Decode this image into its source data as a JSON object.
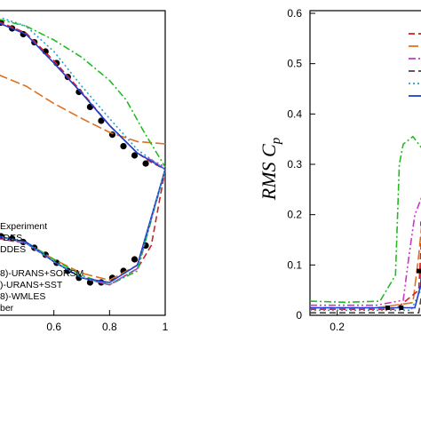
{
  "chart_data": [
    {
      "type": "line",
      "panel": "left",
      "xlim": [
        0.4,
        1.0
      ],
      "x_tick_labels": [
        "0.6",
        "0.8",
        "1"
      ],
      "x_ticks": [
        0.6,
        0.8,
        1.0
      ],
      "legend_placement": "bottom-left",
      "legend": [
        "Experiment",
        "-DES",
        "DDES",
        "8)-URANS+SORSM",
        ")-URANS+SST",
        "8)-WMLES",
        "ber"
      ],
      "series": [
        {
          "name": "Experiment",
          "color": "#000000",
          "style": "markers",
          "upper": {
            "x": [
              0.41,
              0.45,
              0.49,
              0.53,
              0.57,
              0.61,
              0.65,
              0.69,
              0.73,
              0.77,
              0.81,
              0.85,
              0.89,
              0.93
            ],
            "y": [
              1.55,
              1.5,
              1.45,
              1.38,
              1.3,
              1.2,
              1.08,
              0.95,
              0.82,
              0.7,
              0.58,
              0.48,
              0.4,
              0.33
            ]
          },
          "lower": {
            "x": [
              0.41,
              0.45,
              0.49,
              0.53,
              0.57,
              0.61,
              0.65,
              0.69,
              0.73,
              0.77,
              0.81,
              0.85,
              0.89,
              0.93
            ],
            "y": [
              -0.3,
              -0.32,
              -0.35,
              -0.4,
              -0.46,
              -0.53,
              -0.6,
              -0.66,
              -0.7,
              -0.7,
              -0.66,
              -0.6,
              -0.5,
              -0.38
            ]
          }
        },
        {
          "name": "-DES",
          "color": "#d21f1f",
          "style": "dash",
          "upper": {
            "x": [
              0.4,
              0.5,
              0.6,
              0.7,
              0.8,
              0.9,
              0.95,
              1.0
            ],
            "y": [
              1.56,
              1.46,
              1.22,
              0.95,
              0.66,
              0.42,
              0.34,
              0.28
            ]
          },
          "lower": {
            "x": [
              0.4,
              0.5,
              0.6,
              0.7,
              0.8,
              0.9,
              0.95,
              1.0
            ],
            "y": [
              -0.32,
              -0.36,
              -0.52,
              -0.66,
              -0.72,
              -0.58,
              -0.38,
              0.28
            ]
          }
        },
        {
          "name": "DDES",
          "color": "#e07020",
          "style": "longdash",
          "upper": {
            "x": [
              0.4,
              0.5,
              0.6,
              0.7,
              0.8,
              0.9,
              1.0
            ],
            "y": [
              1.1,
              1.0,
              0.85,
              0.72,
              0.6,
              0.52,
              0.5
            ]
          },
          "lower": {
            "x": [
              0.4,
              0.5,
              0.6,
              0.7,
              0.8,
              0.9,
              1.0
            ],
            "y": [
              -0.3,
              -0.36,
              -0.5,
              -0.62,
              -0.68,
              -0.55,
              0.28
            ]
          }
        },
        {
          "name": "8)-URANS+SORSM",
          "color": "#22bb22",
          "style": "dashdot",
          "upper": {
            "x": [
              0.4,
              0.5,
              0.6,
              0.7,
              0.8,
              0.86,
              0.92,
              1.0
            ],
            "y": [
              1.58,
              1.52,
              1.4,
              1.25,
              1.05,
              0.88,
              0.62,
              0.3
            ]
          },
          "lower": {
            "x": [
              0.4,
              0.5,
              0.6,
              0.7,
              0.8,
              0.9,
              1.0
            ],
            "y": [
              -0.3,
              -0.35,
              -0.5,
              -0.64,
              -0.72,
              -0.6,
              0.28
            ]
          }
        },
        {
          "name": ")-URANS+SST",
          "color": "#cc33cc",
          "style": "dashdotdot",
          "upper": {
            "x": [
              0.4,
              0.5,
              0.6,
              0.7,
              0.8,
              0.9,
              1.0
            ],
            "y": [
              1.55,
              1.45,
              1.2,
              0.94,
              0.66,
              0.42,
              0.3
            ]
          },
          "lower": {
            "x": [
              0.4,
              0.5,
              0.6,
              0.7,
              0.8,
              0.9,
              1.0
            ],
            "y": [
              -0.32,
              -0.36,
              -0.52,
              -0.66,
              -0.72,
              -0.58,
              0.28
            ]
          }
        },
        {
          "name": "8)-WMLES",
          "color": "#1f3fcc",
          "style": "solid",
          "upper": {
            "x": [
              0.4,
              0.5,
              0.6,
              0.7,
              0.8,
              0.9,
              1.0
            ],
            "y": [
              1.55,
              1.45,
              1.2,
              0.94,
              0.66,
              0.42,
              0.28
            ]
          },
          "lower": {
            "x": [
              0.4,
              0.5,
              0.6,
              0.7,
              0.8,
              0.9,
              1.0
            ],
            "y": [
              -0.3,
              -0.35,
              -0.52,
              -0.66,
              -0.7,
              -0.55,
              0.28
            ]
          }
        },
        {
          "name": "ber",
          "color": "#20a0d0",
          "style": "dot",
          "upper": {
            "x": [
              0.4,
              0.5,
              0.6,
              0.7,
              0.8,
              0.9,
              1.0
            ],
            "y": [
              1.6,
              1.52,
              1.3,
              1.0,
              0.72,
              0.45,
              0.28
            ]
          },
          "lower": {
            "x": [
              0.4,
              0.5,
              0.6,
              0.7,
              0.8,
              0.9,
              1.0
            ],
            "y": [
              -0.3,
              -0.36,
              -0.52,
              -0.66,
              -0.72,
              -0.58,
              0.28
            ]
          }
        }
      ]
    },
    {
      "type": "line",
      "panel": "right",
      "ylabel": "RMS Cp",
      "ylim": [
        0,
        0.6
      ],
      "y_ticks": [
        0,
        0.1,
        0.2,
        0.3,
        0.4,
        0.5,
        0.6
      ],
      "y_tick_labels": [
        "0",
        "0.1",
        "0.2",
        "0.3",
        "0.4",
        "0.5",
        "0.6"
      ],
      "x_ticks": [
        0.2
      ],
      "x_tick_labels": [
        "0.2"
      ],
      "legend_placement": "top-right",
      "series": [
        {
          "name": "",
          "color": "#22bb22",
          "style": "dashdot",
          "x": [
            0.13,
            0.22,
            0.31,
            0.35,
            0.36,
            0.37,
            0.395,
            0.42,
            0.43
          ],
          "y": [
            0.028,
            0.026,
            0.028,
            0.08,
            0.3,
            0.34,
            0.355,
            0.33,
            0.3
          ]
        },
        {
          "name": "",
          "color": "#cc33cc",
          "style": "dashdotdot",
          "x": [
            0.13,
            0.3,
            0.37,
            0.385,
            0.4,
            0.43
          ],
          "y": [
            0.02,
            0.02,
            0.03,
            0.12,
            0.2,
            0.26
          ]
        },
        {
          "name": "",
          "color": "#e07020",
          "style": "longdash",
          "x": [
            0.13,
            0.3,
            0.395,
            0.41,
            0.42,
            0.43
          ],
          "y": [
            0.015,
            0.015,
            0.025,
            0.12,
            0.2,
            0.25
          ]
        },
        {
          "name": "",
          "color": "#d21f1f",
          "style": "dash",
          "x": [
            0.13,
            0.35,
            0.41,
            0.42,
            0.43
          ],
          "y": [
            0.012,
            0.012,
            0.05,
            0.2,
            0.32
          ]
        },
        {
          "name": "",
          "color": "#20a0d0",
          "style": "dot",
          "x": [
            0.13,
            0.39,
            0.415,
            0.425,
            0.43
          ],
          "y": [
            0.01,
            0.01,
            0.05,
            0.2,
            0.28
          ]
        },
        {
          "name": "",
          "color": "#1f3fcc",
          "style": "solid",
          "x": [
            0.13,
            0.4,
            0.415,
            0.42,
            0.43
          ],
          "y": [
            0.015,
            0.015,
            0.06,
            0.16,
            0.2
          ]
        },
        {
          "name": "",
          "color": "#444444",
          "style": "dash",
          "x": [
            0.13,
            0.41,
            0.425,
            0.43
          ],
          "y": [
            0.005,
            0.005,
            0.08,
            0.16
          ]
        },
        {
          "name": "",
          "color": "#000000",
          "style": "markers",
          "x": [
            0.33,
            0.365,
            0.41,
            0.42
          ],
          "y": [
            0.015,
            0.015,
            0.088,
            0.182
          ]
        }
      ],
      "legend_lines": [
        {
          "color": "#d21f1f",
          "style": "dash"
        },
        {
          "color": "#e07020",
          "style": "longdash"
        },
        {
          "color": "#cc33cc",
          "style": "dashdotdot"
        },
        {
          "color": "#444444",
          "style": "dash"
        },
        {
          "color": "#20a0d0",
          "style": "dot"
        },
        {
          "color": "#1f3fcc",
          "style": "solid"
        }
      ]
    }
  ]
}
